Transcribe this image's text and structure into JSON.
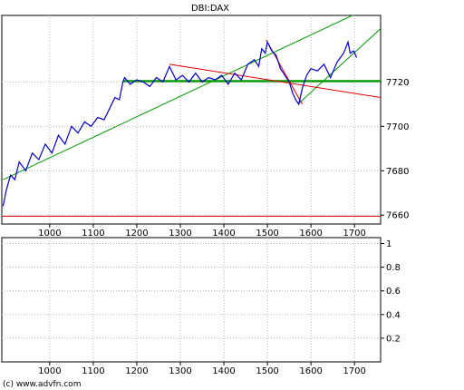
{
  "chart_data": [
    {
      "type": "line",
      "title": "DBI:DAX",
      "xlim": [
        890,
        1760
      ],
      "ylim": [
        7656,
        7750
      ],
      "x_ticks": [
        1000,
        1100,
        1200,
        1300,
        1400,
        1500,
        1600,
        1700
      ],
      "y_ticks": [
        7660,
        7680,
        7700,
        7720
      ],
      "grid": true,
      "price_label": "7720",
      "series": [
        {
          "color": "#0000cc",
          "x": [
            893,
            900,
            910,
            920,
            930,
            945,
            960,
            975,
            990,
            1005,
            1020,
            1035,
            1050,
            1065,
            1080,
            1095,
            1110,
            1125,
            1140,
            1150,
            1160,
            1168,
            1172,
            1185,
            1200,
            1215,
            1230,
            1245,
            1260,
            1275,
            1290,
            1305,
            1320,
            1335,
            1350,
            1365,
            1380,
            1395,
            1410,
            1425,
            1440,
            1455,
            1470,
            1480,
            1487,
            1495,
            1500,
            1510,
            1520,
            1530,
            1540,
            1550,
            1558,
            1565,
            1572,
            1580,
            1590,
            1600,
            1615,
            1630,
            1645,
            1660,
            1675,
            1685,
            1690,
            1698,
            1705
          ],
          "values": [
            7664,
            7671,
            7678,
            7676,
            7684,
            7680,
            7688,
            7685,
            7692,
            7688,
            7696,
            7692,
            7700,
            7697,
            7702,
            7700,
            7704,
            7703,
            7709,
            7713,
            7712,
            7720,
            7722,
            7719,
            7721,
            7720,
            7718,
            7722,
            7720,
            7727,
            7721,
            7723,
            7720,
            7724,
            7720,
            7722,
            7721,
            7723,
            7719,
            7724,
            7721,
            7728,
            7730,
            7727,
            7735,
            7733,
            7738,
            7734,
            7732,
            7726,
            7723,
            7720,
            7715,
            7712,
            7710,
            7717,
            7723,
            7726,
            7725,
            7728,
            7722,
            7729,
            7733,
            7738,
            7733,
            7734,
            7731
          ]
        }
      ],
      "overlays": [
        {
          "color": "#009900",
          "x": [
            1168,
            1760
          ],
          "values": [
            7720.4,
            7720.4
          ]
        },
        {
          "color": "#009900",
          "x": [
            893,
            1760
          ],
          "values": [
            7676,
            7756
          ]
        },
        {
          "color": "#009900",
          "x": [
            1570,
            1760
          ],
          "values": [
            7710,
            7744
          ]
        },
        {
          "color": "#dd0000",
          "x": [
            1275,
            1760
          ],
          "values": [
            7728,
            7713
          ]
        },
        {
          "color": "#dd0000",
          "x": [
            1497,
            1580
          ],
          "values": [
            7739,
            7710
          ]
        },
        {
          "color": "#dd0000",
          "x": [
            890,
            1760
          ],
          "values": [
            7659.5,
            7659.5
          ]
        }
      ]
    },
    {
      "type": "line",
      "xlim": [
        890,
        1760
      ],
      "ylim": [
        0,
        1.05
      ],
      "x_ticks": [
        1000,
        1100,
        1200,
        1300,
        1400,
        1500,
        1600,
        1700
      ],
      "y_ticks": [
        0.2,
        0.4,
        0.6,
        0.8,
        1
      ],
      "grid": true,
      "series": []
    }
  ],
  "footer": {
    "copyright": "(c) www.advfn.com"
  }
}
